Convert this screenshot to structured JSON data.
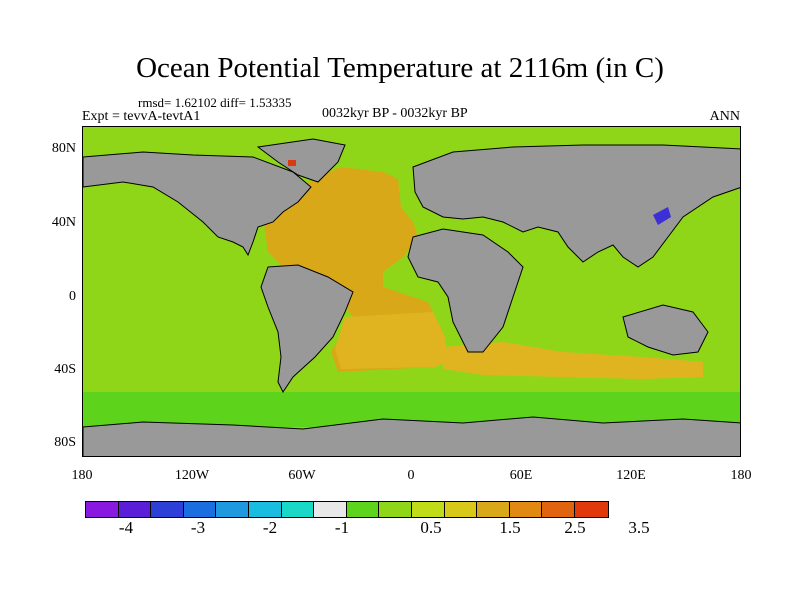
{
  "title": "Ocean Potential Temperature at 2116m (in C)",
  "stats": "rmsd= 1.62102 diff= 1.53335",
  "experiment": "Expt = tevvA-tevtA1",
  "period": "0032kyr BP - 0032kyr BP",
  "season": "ANN",
  "lat_labels": [
    "80N",
    "40N",
    "0",
    "40S",
    "80S"
  ],
  "lon_labels": [
    "180",
    "120W",
    "60W",
    "0",
    "60E",
    "120E",
    "180"
  ],
  "colors": {
    "land": "#999999",
    "background_anomaly": "#8fd619",
    "atlantic_anomaly": "#d8a818",
    "south_atlantic_anomaly": "#e0b420",
    "southern_ocean_anomaly": "#5ed31c",
    "north_pacific_spot": "#3c2fd6",
    "arctic_spot": "#d83a12"
  },
  "colorbar": {
    "colors": [
      "#8a19e0",
      "#5a1ed8",
      "#2d3fd6",
      "#1a6ee0",
      "#1e99e0",
      "#19bde0",
      "#1ad8c8",
      "#e8e8e8",
      "#5ed31c",
      "#8fd619",
      "#c0dc18",
      "#d8c818",
      "#d8a818",
      "#e08a14",
      "#e06410",
      "#e03a0a"
    ],
    "labels": [
      "-4",
      "-3",
      "-2",
      "-1",
      "0.5",
      "1.5",
      "2.5",
      "3.5"
    ]
  }
}
